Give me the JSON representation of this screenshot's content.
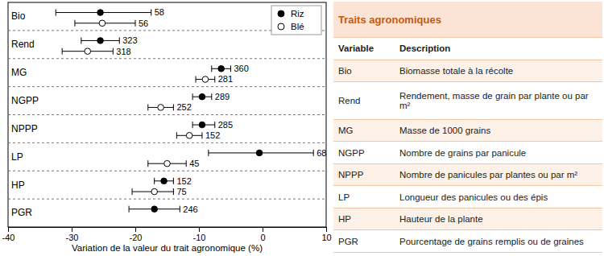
{
  "chart_data": {
    "type": "dot",
    "x_label": "Variation de la valeur du trait agronomique (%)",
    "categories": [
      "Bio",
      "Rend",
      "MG",
      "NGPP",
      "NPPP",
      "LP",
      "HP",
      "PGR"
    ],
    "xlim": [
      -40,
      10
    ],
    "xticks": [
      -40,
      -30,
      -20,
      -10,
      0,
      10
    ],
    "orientation": "horizontal",
    "grid": false,
    "legend": "upper right",
    "series": [
      {
        "name": "Riz",
        "color": "#000000",
        "marker": "circle",
        "values": [
          -25.5,
          -25.5,
          -6.5,
          -9.5,
          -9.5,
          -0.5,
          -15.5,
          -17.0
        ],
        "lower": [
          -32.5,
          -28.5,
          -8.0,
          -11.0,
          -11.0,
          -8.5,
          -17.0,
          -21.0
        ],
        "upper": [
          -17.5,
          -22.5,
          -5.0,
          -8.0,
          -7.5,
          8.0,
          -14.0,
          -13.0
        ],
        "n": [
          58,
          323,
          360,
          289,
          285,
          68,
          152,
          246
        ]
      },
      {
        "name": "Blé",
        "color": "#000000",
        "marker": "open",
        "values": [
          -25.2,
          -27.5,
          -9.0,
          -16.0,
          -11.5,
          -15.0,
          -17.0,
          null
        ],
        "lower": [
          -29.5,
          -31.5,
          -10.5,
          -18.0,
          -13.5,
          -18.0,
          -20.5,
          null
        ],
        "upper": [
          -20.0,
          -23.5,
          -7.5,
          -14.0,
          -9.5,
          -12.0,
          -14.0,
          null
        ],
        "n": [
          56,
          318,
          281,
          252,
          152,
          45,
          75,
          null
        ]
      }
    ]
  },
  "table": {
    "title": "Traits agronomiques",
    "columns": [
      "Variable",
      "Description"
    ],
    "rows": [
      [
        "Bio",
        "Biomasse totale à la récolte"
      ],
      [
        "Rend",
        "Rendement, masse de grain par plante ou par m²"
      ],
      [
        "MG",
        "Masse de 1000 grains"
      ],
      [
        "NGPP",
        "Nombre de grains par panicule"
      ],
      [
        "NPPP",
        "Nombre de panicules par plantes ou par m²"
      ],
      [
        "LP",
        "Longueur des panicules ou des épis"
      ],
      [
        "HP",
        "Hauteur de la plante"
      ],
      [
        "PGR",
        "Pourcentage de grains remplis ou de graines"
      ]
    ]
  }
}
